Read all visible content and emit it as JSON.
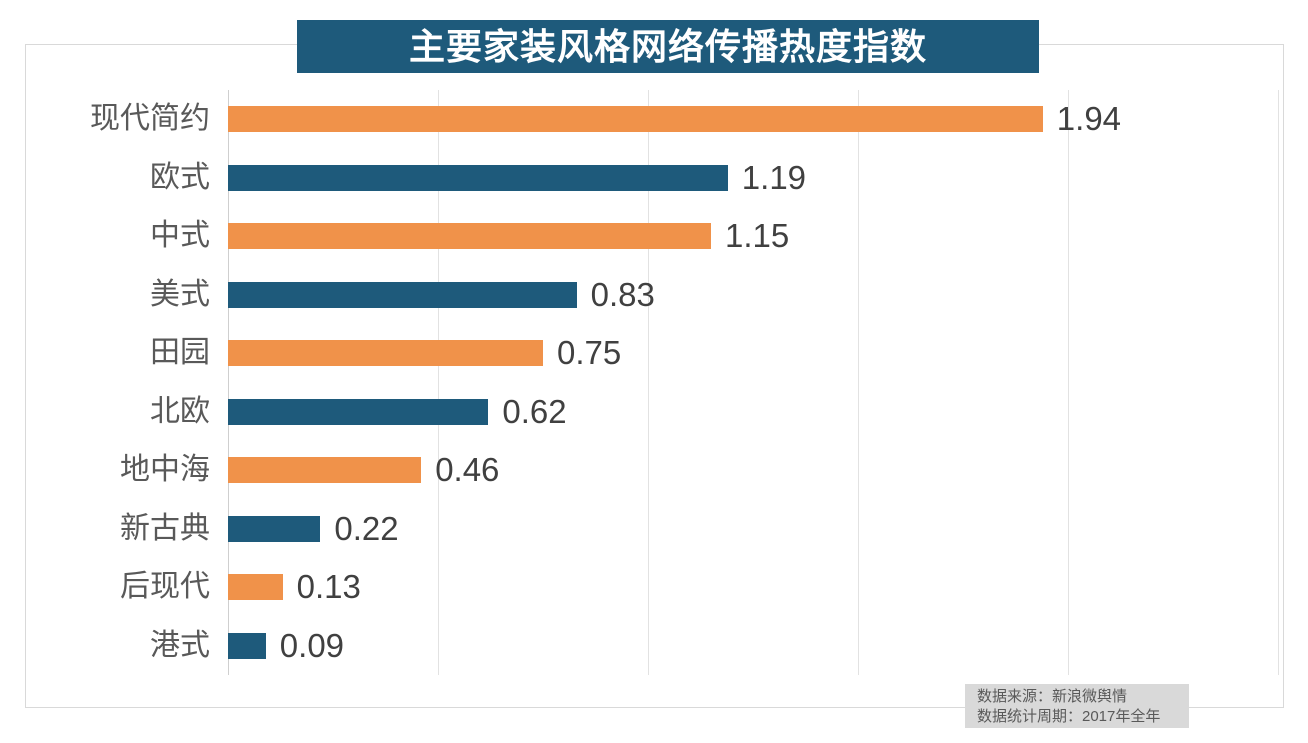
{
  "title": "主要家装风格网络传播热度指数",
  "chart_data": {
    "type": "bar",
    "orientation": "horizontal",
    "title": "主要家装风格网络传播热度指数",
    "categories": [
      "现代简约",
      "欧式",
      "中式",
      "美式",
      "田园",
      "北欧",
      "地中海",
      "新古典",
      "后现代",
      "港式"
    ],
    "values": [
      1.94,
      1.19,
      1.15,
      0.83,
      0.75,
      0.62,
      0.46,
      0.22,
      0.13,
      0.09
    ],
    "value_labels": [
      "1.94",
      "1.19",
      "1.15",
      "0.83",
      "0.75",
      "0.62",
      "0.46",
      "0.22",
      "0.13",
      "0.09"
    ],
    "xlim": [
      0,
      2.5
    ],
    "gridline_interval": 0.5,
    "grid": true,
    "legend": false,
    "bar_colors_alternating": [
      "#f0924a",
      "#1e5a7b"
    ]
  },
  "colors": {
    "orange": "#f0924a",
    "teal": "#1e5a7b",
    "title_bg": "#1e5a7b",
    "title_text": "#ffffff",
    "category_label": "#595959",
    "value_label": "#404040",
    "gridline": "#e2e2e2",
    "border": "#d9d9d9",
    "source_bg": "#d9d9d9",
    "source_text": "#595959"
  },
  "source_note": {
    "line1": "数据来源：新浪微舆情",
    "line2": "数据统计周期：2017年全年"
  }
}
